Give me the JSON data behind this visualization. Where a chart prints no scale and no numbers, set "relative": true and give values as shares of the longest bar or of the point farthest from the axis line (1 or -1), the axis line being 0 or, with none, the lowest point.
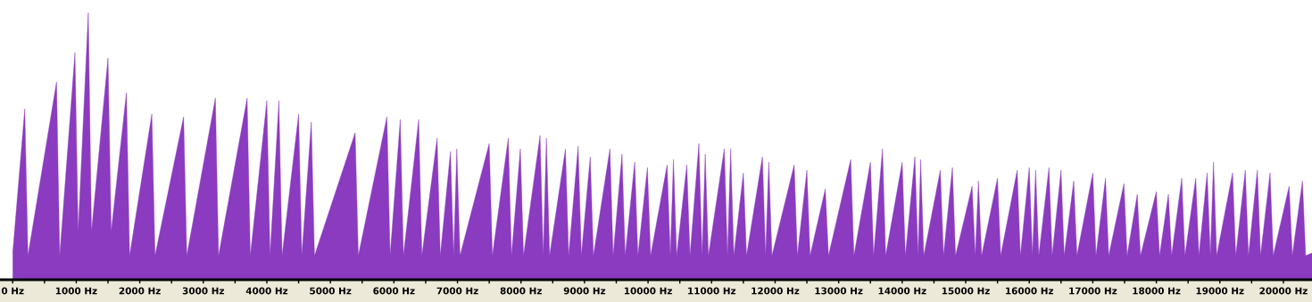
{
  "chart_data": {
    "type": "area",
    "relative": true,
    "grid": false,
    "legend": false,
    "xlim": [
      -200,
      20450
    ],
    "xticks": [
      {
        "value": 0,
        "label": "0 Hz"
      },
      {
        "value": 500,
        "label": null
      },
      {
        "value": 1000,
        "label": "1000 Hz"
      },
      {
        "value": 1500,
        "label": null
      },
      {
        "value": 2000,
        "label": "2000 Hz"
      },
      {
        "value": 2500,
        "label": null
      },
      {
        "value": 3000,
        "label": "3000 Hz"
      },
      {
        "value": 3500,
        "label": null
      },
      {
        "value": 4000,
        "label": "4000 Hz"
      },
      {
        "value": 4500,
        "label": null
      },
      {
        "value": 5000,
        "label": "5000 Hz"
      },
      {
        "value": 5500,
        "label": null
      },
      {
        "value": 6000,
        "label": "6000 Hz"
      },
      {
        "value": 6500,
        "label": null
      },
      {
        "value": 7000,
        "label": "7000 Hz"
      },
      {
        "value": 7500,
        "label": null
      },
      {
        "value": 8000,
        "label": "8000 Hz"
      },
      {
        "value": 8500,
        "label": null
      },
      {
        "value": 9000,
        "label": "9000 Hz"
      },
      {
        "value": 9500,
        "label": null
      },
      {
        "value": 10000,
        "label": "10000 Hz"
      },
      {
        "value": 10500,
        "label": null
      },
      {
        "value": 11000,
        "label": "11000 Hz"
      },
      {
        "value": 11500,
        "label": null
      },
      {
        "value": 12000,
        "label": "12000 Hz"
      },
      {
        "value": 12500,
        "label": null
      },
      {
        "value": 13000,
        "label": "13000 Hz"
      },
      {
        "value": 13500,
        "label": null
      },
      {
        "value": 14000,
        "label": "14000 Hz"
      },
      {
        "value": 14500,
        "label": null
      },
      {
        "value": 15000,
        "label": "15000 Hz"
      },
      {
        "value": 15500,
        "label": null
      },
      {
        "value": 16000,
        "label": "16000 Hz"
      },
      {
        "value": 16500,
        "label": null
      },
      {
        "value": 17000,
        "label": "17000 Hz"
      },
      {
        "value": 17500,
        "label": null
      },
      {
        "value": 18000,
        "label": "18000 Hz"
      },
      {
        "value": 18500,
        "label": null
      },
      {
        "value": 19000,
        "label": "19000 Hz"
      },
      {
        "value": 19500,
        "label": null
      },
      {
        "value": 20000,
        "label": "20000 Hz"
      }
    ],
    "series": [
      {
        "color": "#8a3bbf",
        "x": [
          0,
          190,
          240,
          690,
          740,
          980,
          1030,
          1190,
          1240,
          1500,
          1550,
          1790,
          1840,
          2190,
          2240,
          2690,
          2740,
          3190,
          3240,
          3690,
          3740,
          4000,
          4050,
          4190,
          4240,
          4500,
          4550,
          4700,
          4750,
          5390,
          5440,
          5890,
          5940,
          6100,
          6150,
          6390,
          6440,
          6680,
          6730,
          6890,
          6940,
          6990,
          7040,
          7500,
          7550,
          7800,
          7850,
          7990,
          8040,
          8300,
          8350,
          8400,
          8450,
          8700,
          8750,
          8900,
          8950,
          9090,
          9140,
          9400,
          9450,
          9590,
          9640,
          9790,
          9840,
          9990,
          10040,
          10300,
          10350,
          10400,
          10450,
          10610,
          10660,
          10800,
          10850,
          10900,
          10950,
          11200,
          11250,
          11300,
          11350,
          11500,
          11550,
          11800,
          11850,
          11900,
          11950,
          12300,
          12350,
          12500,
          12550,
          12790,
          12840,
          13190,
          13240,
          13500,
          13550,
          13690,
          13740,
          14000,
          14050,
          14200,
          14250,
          14290,
          14340,
          14600,
          14650,
          14790,
          14840,
          15100,
          15150,
          15200,
          15250,
          15500,
          15550,
          15810,
          15860,
          16000,
          16050,
          16100,
          16150,
          16310,
          16360,
          16500,
          16550,
          16700,
          16750,
          17000,
          17050,
          17200,
          17250,
          17490,
          17540,
          17700,
          17750,
          18000,
          18050,
          18190,
          18240,
          18400,
          18450,
          18620,
          18670,
          18800,
          18850,
          18900,
          18950,
          19200,
          19250,
          19400,
          19450,
          19590,
          19640,
          19790,
          19840,
          20090,
          20140,
          20300,
          20350,
          20450
        ],
        "values": [
          0.1,
          0.64,
          0.09,
          0.74,
          0.09,
          0.85,
          0.18,
          1.0,
          0.18,
          0.83,
          0.18,
          0.7,
          0.09,
          0.62,
          0.09,
          0.61,
          0.09,
          0.68,
          0.09,
          0.68,
          0.09,
          0.67,
          0.09,
          0.67,
          0.09,
          0.62,
          0.09,
          0.59,
          0.09,
          0.55,
          0.09,
          0.61,
          0.09,
          0.6,
          0.09,
          0.6,
          0.09,
          0.53,
          0.09,
          0.48,
          0.09,
          0.49,
          0.09,
          0.51,
          0.09,
          0.53,
          0.09,
          0.49,
          0.09,
          0.54,
          0.09,
          0.53,
          0.09,
          0.49,
          0.09,
          0.5,
          0.09,
          0.46,
          0.09,
          0.49,
          0.09,
          0.47,
          0.09,
          0.44,
          0.09,
          0.42,
          0.09,
          0.43,
          0.09,
          0.45,
          0.09,
          0.43,
          0.09,
          0.51,
          0.09,
          0.47,
          0.09,
          0.49,
          0.09,
          0.49,
          0.09,
          0.4,
          0.09,
          0.46,
          0.09,
          0.44,
          0.09,
          0.43,
          0.09,
          0.41,
          0.09,
          0.34,
          0.09,
          0.45,
          0.09,
          0.44,
          0.09,
          0.49,
          0.09,
          0.44,
          0.09,
          0.46,
          0.09,
          0.45,
          0.09,
          0.41,
          0.09,
          0.42,
          0.09,
          0.35,
          0.09,
          0.37,
          0.09,
          0.38,
          0.09,
          0.41,
          0.09,
          0.42,
          0.09,
          0.41,
          0.09,
          0.42,
          0.09,
          0.41,
          0.09,
          0.37,
          0.09,
          0.4,
          0.09,
          0.38,
          0.09,
          0.36,
          0.09,
          0.32,
          0.09,
          0.33,
          0.09,
          0.32,
          0.09,
          0.38,
          0.09,
          0.38,
          0.09,
          0.4,
          0.09,
          0.44,
          0.09,
          0.4,
          0.09,
          0.41,
          0.09,
          0.41,
          0.09,
          0.4,
          0.09,
          0.35,
          0.09,
          0.37,
          0.09,
          0.1
        ]
      }
    ]
  }
}
